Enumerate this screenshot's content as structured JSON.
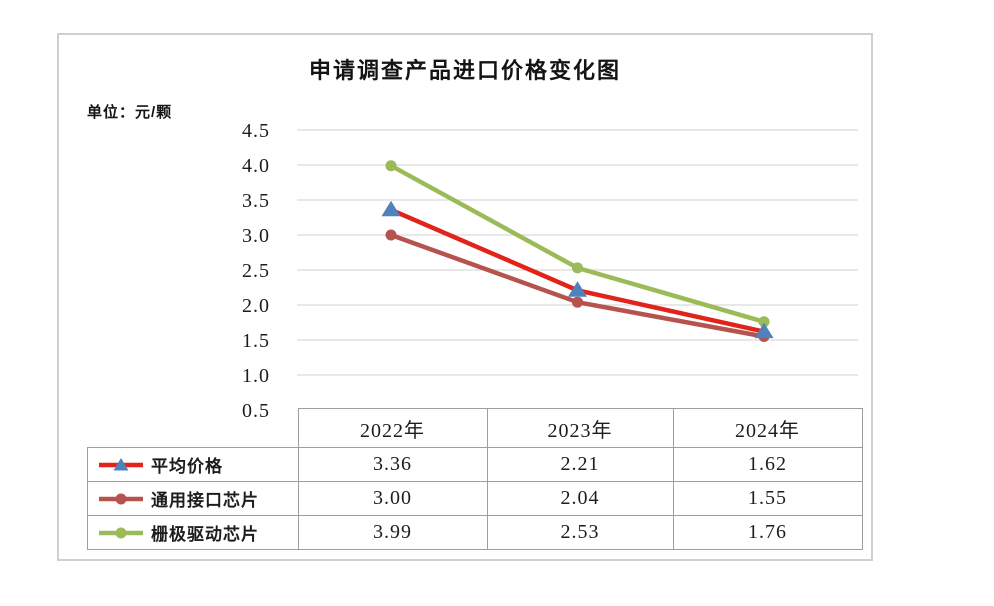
{
  "chart_data": {
    "type": "line",
    "title": "申请调查产品进口价格变化图",
    "unit": "单位：元/颗",
    "categories": [
      "2022年",
      "2023年",
      "2024年"
    ],
    "series": [
      {
        "name": "平均价格",
        "values": [
          3.36,
          2.21,
          1.62
        ],
        "line_color": "#e2231a",
        "marker": "triangle",
        "marker_color": "#4f81bd"
      },
      {
        "name": "通用接口芯片",
        "values": [
          3.0,
          2.04,
          1.55
        ],
        "line_color": "#b5534f",
        "marker": "circle",
        "marker_color": "#b5534f"
      },
      {
        "name": "栅极驱动芯片",
        "values": [
          3.99,
          2.53,
          1.76
        ],
        "line_color": "#9bbb59",
        "marker": "circle",
        "marker_color": "#9bbb59"
      }
    ],
    "ylim": [
      0.5,
      4.5
    ],
    "ytick_step": 0.5,
    "value_decimals": 2,
    "grid": true,
    "gridline_color": "#d9d9d9",
    "legend_position": "table-left"
  }
}
